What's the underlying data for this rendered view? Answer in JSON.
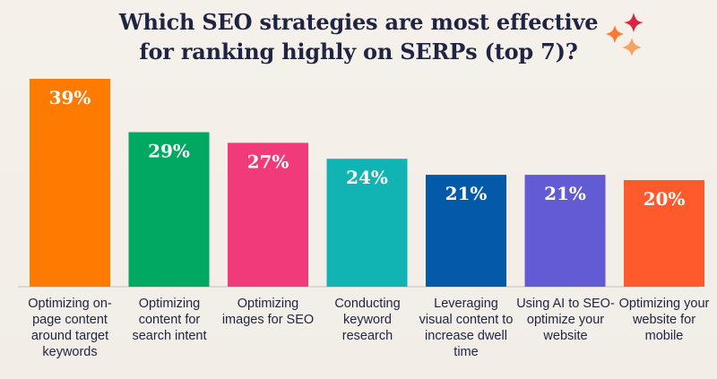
{
  "chart_data": {
    "type": "bar",
    "title": "Which SEO strategies are most effective for ranking highly on SERPs (top 7)?",
    "categories": [
      "Optimizing on-page content around target keywords",
      "Optimizing content for search intent",
      "Optimizing images for SEO",
      "Conducting keyword research",
      "Leveraging visual content to increase dwell time",
      "Using AI to SEO-optimize your website",
      "Optimizing your website for mobile"
    ],
    "values": [
      39,
      29,
      27,
      24,
      21,
      21,
      20
    ],
    "value_labels": [
      "39%",
      "29%",
      "27%",
      "24%",
      "21%",
      "21%",
      "20%"
    ],
    "colors": [
      "#ff7a00",
      "#00a862",
      "#f03a79",
      "#12b3b3",
      "#045aa8",
      "#625bd3",
      "#ff5a2c"
    ],
    "xlabel": "",
    "ylabel": "",
    "ylim": [
      0,
      39
    ],
    "grid": false,
    "legend": "none",
    "value_unit": "%"
  },
  "decor": {
    "sparkle_colors": [
      "#d9263f",
      "#ff7a30",
      "#f7a35d"
    ]
  }
}
